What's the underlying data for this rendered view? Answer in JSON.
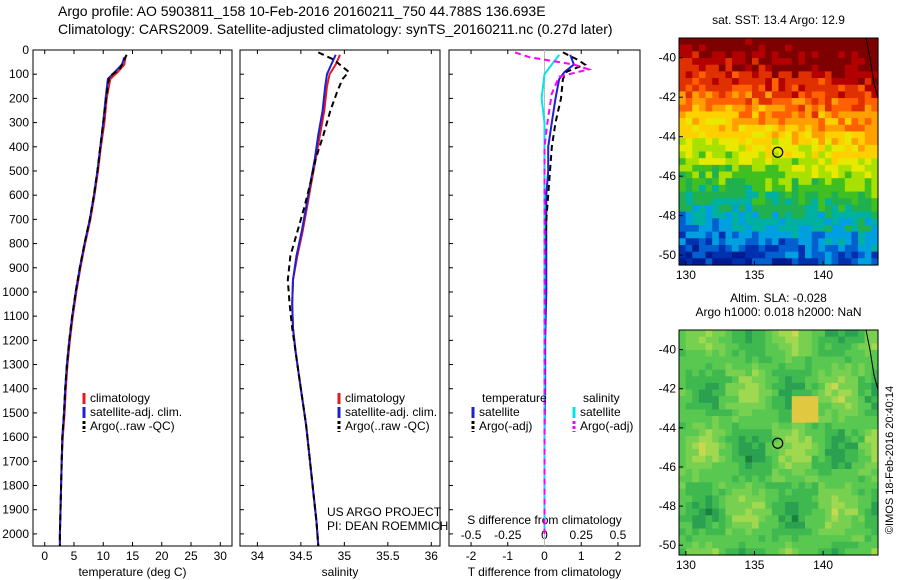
{
  "header": {
    "line1": "Argo profile: AO 5903811_158 10-Feb-2016 20160211_750 44.788S 136.693E",
    "line2": "Climatology: CARS2009. Satellite-adjusted climatology: synTS_20160211.nc (0.27d later)"
  },
  "colors": {
    "climatology": "#e41a1c",
    "satellite": "#1f1fd6",
    "argo": "#000000",
    "sat_salinity": "#00e5e5",
    "argo_adj_salinity": "#ff00ff"
  },
  "chart_data": [
    {
      "type": "line",
      "id": "temperature",
      "xlabel": "temperature (deg C)",
      "ylabel": "",
      "xlim": [
        -2,
        32
      ],
      "ylim": [
        2050,
        0
      ],
      "xticks": [
        0,
        5,
        10,
        15,
        20,
        25,
        30
      ],
      "yticks": [
        0,
        100,
        200,
        300,
        400,
        500,
        600,
        700,
        800,
        900,
        1000,
        1100,
        1200,
        1300,
        1400,
        1500,
        1600,
        1700,
        1800,
        1900,
        2000
      ],
      "legend": [
        "climatology",
        "satellite-adj. clim.",
        "Argo(..raw -QC)"
      ],
      "series": [
        {
          "name": "climatology",
          "style": "solid",
          "color": "#e41a1c",
          "points": [
            [
              13.8,
              30
            ],
            [
              13.6,
              60
            ],
            [
              12.5,
              90
            ],
            [
              11.2,
              120
            ],
            [
              10.6,
              200
            ],
            [
              10.2,
              300
            ],
            [
              9.6,
              400
            ],
            [
              9.1,
              500
            ],
            [
              8.5,
              600
            ],
            [
              7.8,
              700
            ],
            [
              6.9,
              800
            ],
            [
              6.1,
              900
            ],
            [
              5.4,
              1000
            ],
            [
              4.8,
              1100
            ],
            [
              4.3,
              1200
            ],
            [
              3.9,
              1300
            ],
            [
              3.6,
              1400
            ],
            [
              3.4,
              1500
            ],
            [
              3.1,
              1600
            ],
            [
              2.9,
              1700
            ],
            [
              2.8,
              1800
            ],
            [
              2.7,
              1900
            ],
            [
              2.6,
              2000
            ],
            [
              2.6,
              2050
            ]
          ]
        },
        {
          "name": "satellite-adj. clim.",
          "style": "solid",
          "color": "#1f1fd6",
          "points": [
            [
              13.6,
              30
            ],
            [
              13.2,
              60
            ],
            [
              12.0,
              90
            ],
            [
              10.8,
              120
            ],
            [
              10.4,
              200
            ],
            [
              10.0,
              300
            ],
            [
              9.5,
              400
            ],
            [
              9.0,
              500
            ],
            [
              8.4,
              600
            ],
            [
              7.7,
              700
            ],
            [
              6.8,
              800
            ],
            [
              6.0,
              900
            ],
            [
              5.3,
              1000
            ],
            [
              4.7,
              1100
            ],
            [
              4.2,
              1200
            ],
            [
              3.8,
              1300
            ],
            [
              3.5,
              1400
            ],
            [
              3.3,
              1500
            ],
            [
              3.0,
              1600
            ],
            [
              2.9,
              1700
            ],
            [
              2.8,
              1800
            ],
            [
              2.7,
              1900
            ],
            [
              2.6,
              2000
            ],
            [
              2.6,
              2050
            ]
          ]
        },
        {
          "name": "Argo(..raw -QC)",
          "style": "dashed",
          "color": "#000000",
          "points": [
            [
              14.0,
              20
            ],
            [
              13.4,
              50
            ],
            [
              12.8,
              80
            ],
            [
              11.0,
              110
            ],
            [
              10.5,
              200
            ],
            [
              10.0,
              300
            ],
            [
              9.5,
              400
            ],
            [
              9.0,
              500
            ],
            [
              8.4,
              600
            ],
            [
              7.7,
              700
            ],
            [
              6.8,
              800
            ],
            [
              6.0,
              900
            ],
            [
              5.3,
              1000
            ],
            [
              4.7,
              1100
            ],
            [
              4.2,
              1200
            ],
            [
              3.8,
              1300
            ],
            [
              3.5,
              1400
            ],
            [
              3.3,
              1500
            ],
            [
              3.0,
              1600
            ],
            [
              2.9,
              1700
            ],
            [
              2.8,
              1800
            ],
            [
              2.7,
              1900
            ],
            [
              2.6,
              2000
            ],
            [
              2.6,
              2050
            ]
          ]
        }
      ]
    },
    {
      "type": "line",
      "id": "salinity",
      "xlabel": "salinity",
      "ylabel": "",
      "xlim": [
        33.8,
        36.1
      ],
      "ylim": [
        2050,
        0
      ],
      "xticks": [
        34,
        34.5,
        35,
        35.5,
        36
      ],
      "legend": [
        "climatology",
        "satellite-adj. clim.",
        "Argo(..raw -QC)"
      ],
      "footer": [
        "US ARGO PROJECT",
        "PI: DEAN ROEMMICH"
      ],
      "series": [
        {
          "name": "climatology",
          "style": "solid",
          "color": "#e41a1c",
          "points": [
            [
              34.95,
              20
            ],
            [
              34.9,
              60
            ],
            [
              34.83,
              100
            ],
            [
              34.8,
              150
            ],
            [
              34.77,
              250
            ],
            [
              34.72,
              350
            ],
            [
              34.67,
              450
            ],
            [
              34.62,
              550
            ],
            [
              34.57,
              650
            ],
            [
              34.52,
              750
            ],
            [
              34.46,
              850
            ],
            [
              34.41,
              950
            ],
            [
              34.4,
              1050
            ],
            [
              34.41,
              1150
            ],
            [
              34.44,
              1250
            ],
            [
              34.48,
              1350
            ],
            [
              34.52,
              1450
            ],
            [
              34.56,
              1550
            ],
            [
              34.59,
              1650
            ],
            [
              34.62,
              1750
            ],
            [
              34.65,
              1850
            ],
            [
              34.68,
              1950
            ],
            [
              34.7,
              2050
            ]
          ]
        },
        {
          "name": "satellite-adj. clim.",
          "style": "solid",
          "color": "#1f1fd6",
          "points": [
            [
              34.9,
              20
            ],
            [
              34.85,
              60
            ],
            [
              34.8,
              100
            ],
            [
              34.78,
              150
            ],
            [
              34.75,
              250
            ],
            [
              34.7,
              350
            ],
            [
              34.66,
              450
            ],
            [
              34.61,
              550
            ],
            [
              34.56,
              650
            ],
            [
              34.51,
              750
            ],
            [
              34.45,
              850
            ],
            [
              34.41,
              950
            ],
            [
              34.4,
              1050
            ],
            [
              34.41,
              1150
            ],
            [
              34.44,
              1250
            ],
            [
              34.48,
              1350
            ],
            [
              34.52,
              1450
            ],
            [
              34.56,
              1550
            ],
            [
              34.59,
              1650
            ],
            [
              34.62,
              1750
            ],
            [
              34.65,
              1850
            ],
            [
              34.68,
              1950
            ],
            [
              34.7,
              2050
            ]
          ]
        },
        {
          "name": "Argo(..raw -QC)",
          "style": "dashed",
          "color": "#000000",
          "points": [
            [
              34.7,
              10
            ],
            [
              34.88,
              40
            ],
            [
              34.98,
              70
            ],
            [
              35.05,
              90
            ],
            [
              34.98,
              120
            ],
            [
              34.92,
              170
            ],
            [
              34.84,
              250
            ],
            [
              34.76,
              350
            ],
            [
              34.67,
              450
            ],
            [
              34.61,
              550
            ],
            [
              34.54,
              650
            ],
            [
              34.46,
              750
            ],
            [
              34.38,
              850
            ],
            [
              34.35,
              950
            ],
            [
              34.37,
              1050
            ],
            [
              34.4,
              1150
            ],
            [
              34.44,
              1250
            ],
            [
              34.48,
              1350
            ],
            [
              34.52,
              1450
            ],
            [
              34.56,
              1550
            ],
            [
              34.59,
              1650
            ],
            [
              34.62,
              1750
            ],
            [
              34.65,
              1850
            ],
            [
              34.68,
              1950
            ],
            [
              34.7,
              2050
            ]
          ]
        }
      ]
    },
    {
      "type": "line",
      "id": "difference",
      "xlabel": "T difference from climatology",
      "top_label": "S difference from climatology",
      "xlim": [
        -2.6,
        2.6
      ],
      "xlim_top": [
        -0.65,
        0.65
      ],
      "ylim": [
        2050,
        0
      ],
      "xticks": [
        -2,
        -1,
        0,
        1,
        2
      ],
      "xticks_top": [
        -0.5,
        -0.25,
        0,
        0.25,
        0.5
      ],
      "legend_temperature": [
        "temperature",
        "satellite",
        "Argo(-adj)"
      ],
      "legend_salinity": [
        "salinity",
        "satellite",
        "Argo(-adj)"
      ],
      "series": [
        {
          "name": "temperature satellite",
          "style": "solid",
          "color": "#1f1fd6",
          "points": [
            [
              0.7,
              20
            ],
            [
              0.8,
              60
            ],
            [
              0.55,
              90
            ],
            [
              0.4,
              120
            ],
            [
              0.3,
              200
            ],
            [
              0.2,
              300
            ],
            [
              0.1,
              400
            ],
            [
              0.1,
              500
            ],
            [
              0.05,
              600
            ],
            [
              0.05,
              700
            ],
            [
              0.05,
              800
            ],
            [
              0.05,
              900
            ],
            [
              0.05,
              1000
            ],
            [
              0.02,
              1200
            ],
            [
              0.02,
              1400
            ],
            [
              0.0,
              1600
            ],
            [
              0.0,
              1800
            ],
            [
              0.0,
              2000
            ]
          ]
        },
        {
          "name": "temperature Argo(-adj)",
          "style": "dashed",
          "color": "#000000",
          "points": [
            [
              0.5,
              10
            ],
            [
              0.9,
              40
            ],
            [
              1.1,
              60
            ],
            [
              0.6,
              90
            ],
            [
              0.5,
              120
            ],
            [
              0.45,
              200
            ],
            [
              0.3,
              300
            ],
            [
              0.2,
              400
            ],
            [
              0.15,
              500
            ],
            [
              0.1,
              600
            ],
            [
              0.05,
              700
            ],
            [
              0.02,
              800
            ],
            [
              0.0,
              900
            ],
            [
              0.0,
              1100
            ],
            [
              0.0,
              1400
            ],
            [
              0.0,
              1700
            ],
            [
              0.0,
              2000
            ]
          ]
        },
        {
          "name": "salinity satellite",
          "style": "solid",
          "color": "#00e5e5",
          "points": [
            [
              0.1,
              20
            ],
            [
              0.05,
              60
            ],
            [
              0.0,
              100
            ],
            [
              -0.02,
              200
            ],
            [
              0.0,
              300
            ],
            [
              0.0,
              500
            ],
            [
              0.0,
              700
            ],
            [
              0.0,
              900
            ],
            [
              0.0,
              1200
            ],
            [
              0.0,
              1500
            ],
            [
              0.0,
              1800
            ],
            [
              0.0,
              2000
            ]
          ]
        },
        {
          "name": "salinity Argo(-adj)",
          "style": "dashed",
          "color": "#ff00ff",
          "points": [
            [
              -0.2,
              10
            ],
            [
              -0.1,
              30
            ],
            [
              0.2,
              60
            ],
            [
              0.3,
              80
            ],
            [
              0.1,
              110
            ],
            [
              0.05,
              180
            ],
            [
              0.02,
              300
            ],
            [
              0.0,
              400
            ],
            [
              0.0,
              600
            ],
            [
              0.0,
              800
            ],
            [
              0.0,
              1000
            ],
            [
              0.0,
              1300
            ],
            [
              0.0,
              1600
            ],
            [
              0.0,
              2000
            ]
          ]
        }
      ]
    },
    {
      "type": "heatmap",
      "id": "sst_map",
      "title": "sat. SST: 13.4 Argo: 12.9",
      "xlim": [
        129.5,
        144
      ],
      "ylim": [
        -50.5,
        -39
      ],
      "xticks": [
        130,
        135,
        140
      ],
      "yticks": [
        -40,
        -42,
        -44,
        -46,
        -48,
        -50
      ],
      "marker": [
        136.693,
        -44.788
      ]
    },
    {
      "type": "heatmap",
      "id": "sla_map",
      "title_line1": "Altim. SLA: -0.028",
      "title_line2": "Argo h1000: 0.018 h2000: NaN",
      "xlim": [
        129.5,
        144
      ],
      "ylim": [
        -50.5,
        -39
      ],
      "xticks": [
        130,
        135,
        140
      ],
      "yticks": [
        -40,
        -42,
        -44,
        -46,
        -48,
        -50
      ],
      "marker": [
        136.693,
        -44.788
      ]
    }
  ],
  "stamp": "©IMOS 18-Feb-2016 20:40:14"
}
